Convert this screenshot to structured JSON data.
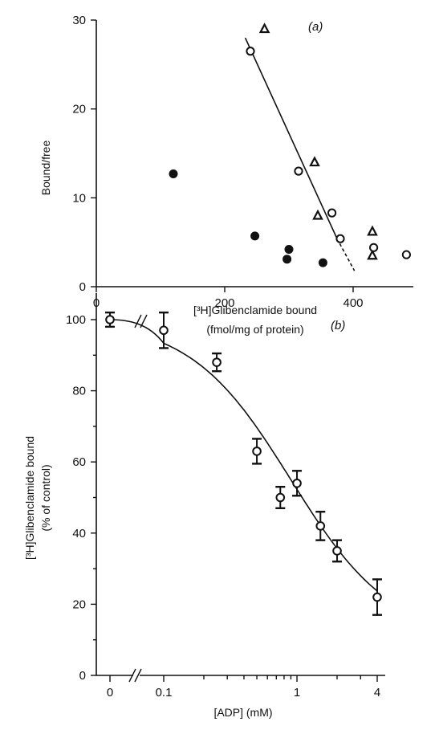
{
  "chart_data": [
    {
      "type": "scatter",
      "panel_label": "(a)",
      "xlabel": "[³H]Glibenclamide bound",
      "xlabel_line2": "(fmol/mg of protein)",
      "ylabel": "Bound/free",
      "xlim": [
        0,
        500
      ],
      "ylim": [
        0,
        30
      ],
      "xticks": [
        0,
        200,
        400
      ],
      "yticks": [
        0,
        10,
        20,
        30
      ],
      "series": [
        {
          "marker": "triangle-open",
          "points": [
            [
              262,
              29.0
            ],
            [
              340,
              14.0
            ],
            [
              345,
              8.0
            ],
            [
              430,
              6.2
            ],
            [
              430,
              3.5
            ]
          ]
        },
        {
          "marker": "circle-open",
          "points": [
            [
              240,
              26.5
            ],
            [
              315,
              13.0
            ],
            [
              367,
              8.3
            ],
            [
              380,
              5.4
            ],
            [
              432,
              4.4
            ],
            [
              483,
              3.6
            ]
          ]
        },
        {
          "marker": "circle-filled",
          "points": [
            [
              120,
              12.7
            ],
            [
              247,
              5.7
            ],
            [
              300,
              4.2
            ],
            [
              297,
              3.1
            ],
            [
              353,
              2.7
            ]
          ]
        }
      ],
      "fit_line": {
        "solid": [
          [
            232,
            28.0
          ],
          [
            375,
            5.4
          ]
        ],
        "dashed": [
          [
            375,
            5.4
          ],
          [
            402,
            1.8
          ]
        ]
      }
    },
    {
      "type": "scatter",
      "panel_label": "(b)",
      "xlabel": "[ADP] (mM)",
      "ylabel": "[³H]Glibenclamide bound",
      "ylabel_line2": "(% of control)",
      "xscale": "log",
      "xlim": [
        0.1,
        4
      ],
      "ylim": [
        0,
        100
      ],
      "xticks": [
        "0",
        "0.1",
        "1",
        "4"
      ],
      "yticks": [
        0,
        20,
        40,
        60,
        80,
        100
      ],
      "axis_break": true,
      "points": [
        {
          "x": 0,
          "y": 100,
          "err": 2
        },
        {
          "x": 0.1,
          "y": 97,
          "err": 5
        },
        {
          "x": 0.25,
          "y": 88,
          "err": 2.5
        },
        {
          "x": 0.5,
          "y": 63,
          "err": 3.5
        },
        {
          "x": 0.75,
          "y": 50,
          "err": 3
        },
        {
          "x": 1.0,
          "y": 54,
          "err": 3.5
        },
        {
          "x": 1.5,
          "y": 42,
          "err": 4
        },
        {
          "x": 2.0,
          "y": 35,
          "err": 3
        },
        {
          "x": 4.0,
          "y": 22,
          "err": 5
        }
      ],
      "fit_curve": {
        "ic50": 0.9,
        "hill": 1.15,
        "bottom": 10,
        "top": 100
      }
    }
  ]
}
